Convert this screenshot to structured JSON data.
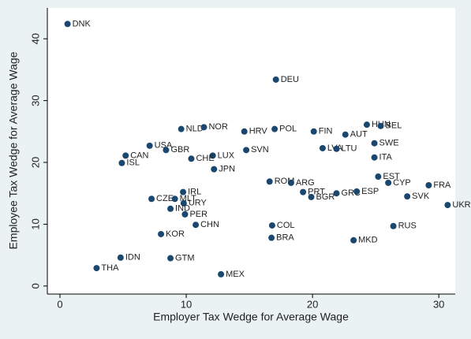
{
  "chart_data": {
    "type": "scatter",
    "xlabel": "Employer Tax Wedge for Average Wage",
    "ylabel": "Employee Tax Wedge for Average Wage",
    "color": "#1a476f",
    "xlim": [
      -1,
      31.3
    ],
    "ylim": [
      -1.3,
      45
    ],
    "xticks": [
      0,
      10,
      20,
      30
    ],
    "yticks": [
      0,
      10,
      20,
      30,
      40
    ],
    "labels": [
      "DNK",
      "DEU",
      "HUN",
      "BEL",
      "NLD",
      "NOR",
      "HRV",
      "POL",
      "FIN",
      "SWE",
      "AUT",
      "USA",
      "GBR",
      "LVA",
      "LTU",
      "SVN",
      "CAN",
      "LUX",
      "CHE",
      "ISL",
      "ITA",
      "JPN",
      "EST",
      "CYP",
      "FRA",
      "ROM",
      "ARG",
      "IRL",
      "PRT",
      "GRC",
      "ESP",
      "SVK",
      "BGR",
      "CZE",
      "MLT",
      "URY",
      "UKR",
      "IND",
      "PER",
      "CHN",
      "COL",
      "RUS",
      "KOR",
      "BRA",
      "MKD",
      "IDN",
      "GTM",
      "THA",
      "MEX"
    ],
    "x": [
      0.6,
      17.1,
      24.3,
      25.4,
      9.6,
      11.4,
      14.6,
      17.0,
      20.1,
      24.9,
      22.6,
      7.1,
      8.4,
      20.8,
      21.9,
      14.75,
      5.2,
      12.1,
      10.4,
      4.9,
      24.9,
      12.2,
      25.2,
      26.0,
      29.2,
      16.6,
      18.3,
      9.75,
      19.25,
      21.9,
      23.5,
      27.5,
      19.9,
      7.25,
      9.1,
      9.8,
      30.7,
      8.75,
      9.9,
      10.75,
      16.8,
      26.4,
      8.0,
      16.75,
      23.25,
      4.8,
      8.75,
      2.9,
      12.75
    ],
    "y": [
      42.4,
      33.4,
      26.1,
      25.9,
      25.4,
      25.7,
      25.0,
      25.4,
      25.0,
      23.1,
      24.5,
      22.7,
      22.0,
      22.3,
      22.2,
      22.0,
      21.1,
      21.1,
      20.6,
      19.9,
      20.8,
      18.9,
      17.7,
      16.7,
      16.3,
      16.9,
      16.7,
      15.2,
      15.2,
      15.0,
      15.3,
      14.5,
      14.4,
      14.1,
      14.1,
      13.4,
      13.1,
      12.5,
      11.6,
      9.9,
      9.8,
      9.7,
      8.4,
      7.8,
      7.4,
      4.6,
      4.5,
      2.9,
      1.9
    ]
  }
}
